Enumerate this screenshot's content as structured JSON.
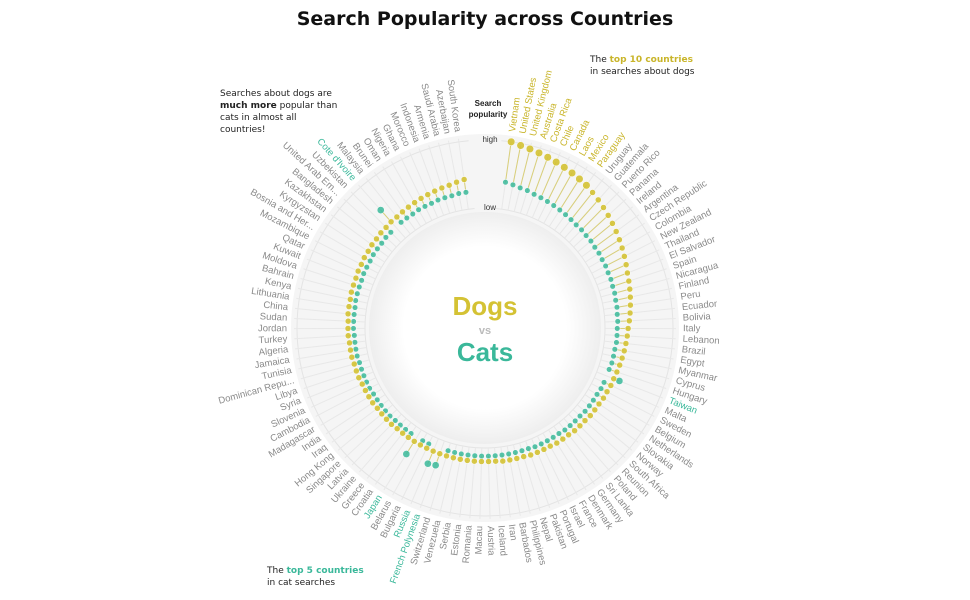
{
  "chart_data": {
    "type": "radial-lollipop",
    "title": "Search Popularity across Countries",
    "axis_label": [
      "Search",
      "popularity"
    ],
    "vs_label": "vs",
    "rlim": [
      0,
      100
    ],
    "rticks": [
      {
        "value": 0,
        "label": "low"
      },
      {
        "value": 100,
        "label": "high"
      }
    ],
    "annotations": {
      "dogs_note": [
        "Searches about dogs are",
        "much more",
        " popular than",
        "cats in almost all countries!"
      ],
      "dog_top": [
        "The ",
        "top 10 countries",
        "in searches about dogs"
      ],
      "cat_top": [
        "The ",
        "top 5 countries",
        "in cat searches"
      ]
    },
    "categories": [
      "Vietnam",
      "United States",
      "United Kingdom",
      "Australia",
      "Costa Rica",
      "Chile",
      "Canada",
      "Laos",
      "Mexico",
      "Paraguay",
      "Uruguay",
      "Guatemala",
      "Puerto Rico",
      "Panama",
      "Ireland",
      "Argentina",
      "Czech Republic",
      "Colombia",
      "New Zealand",
      "Thailand",
      "El Salvador",
      "Spain",
      "Nicaragua",
      "Finland",
      "Peru",
      "Ecuador",
      "Bolivia",
      "Italy",
      "Lebanon",
      "Brazil",
      "Egypt",
      "Myanmar",
      "Cyprus",
      "Hungary",
      "Taiwan",
      "Malta",
      "Sweden",
      "Belgium",
      "Netherlands",
      "Slovakia",
      "Norway",
      "South Africa",
      "Reunion",
      "Poland",
      "Sri Lanka",
      "Germany",
      "Denmark",
      "France",
      "Israel",
      "Portugal",
      "Pakistan",
      "Nepal",
      "Philippines",
      "Barbados",
      "Iran",
      "Iceland",
      "Austria",
      "Macau",
      "Romania",
      "Estonia",
      "Serbia",
      "Venezuela",
      "Switzerland",
      "French Polynesia",
      "Russia",
      "Bulgaria",
      "Belarus",
      "Japan",
      "Croatia",
      "Greece",
      "Ukraine",
      "Latvia",
      "Singapore",
      "Hong Kong",
      "Iraq",
      "India",
      "Madagascar",
      "Cambodia",
      "Slovenia",
      "Syria",
      "Libya",
      "Dominican Repu...",
      "Tunisia",
      "Jamaica",
      "Algeria",
      "Turkey",
      "Jordan",
      "Sudan",
      "China",
      "Lithuania",
      "Kenya",
      "Bahrain",
      "Moldova",
      "Kuwait",
      "Qatar",
      "Mozambique",
      "Bosnia and Her...",
      "Kyrgyzstan",
      "Kazakhstan",
      "Bangladesh",
      "United Arab Em...",
      "Uzbekistan",
      "Cote d'Ivoire",
      "Malaysia",
      "Brunei",
      "Oman",
      "Nigeria",
      "Ghana",
      "Morocco",
      "Indonesia",
      "Armenia",
      "Saudi Arabia",
      "Azerbaijan",
      "South Korea"
    ],
    "series": [
      {
        "name": "Dogs",
        "color": "#d4c234",
        "highlight": [
          0,
          1,
          2,
          3,
          4,
          5,
          6,
          7,
          8,
          9
        ],
        "values": [
          100,
          97,
          95,
          93,
          91,
          89,
          87,
          85,
          83,
          81,
          78,
          75,
          72,
          69,
          66,
          63,
          60,
          57,
          54,
          51,
          48,
          46,
          44,
          42,
          40,
          38,
          36,
          34,
          33,
          32,
          31,
          30,
          29,
          28,
          27,
          27,
          26,
          26,
          25,
          25,
          25,
          24,
          24,
          24,
          23,
          23,
          23,
          22,
          22,
          22,
          22,
          21,
          21,
          21,
          21,
          20,
          20,
          20,
          20,
          20,
          20,
          20,
          20,
          20,
          20,
          20,
          20,
          20,
          20,
          20,
          20,
          21,
          21,
          21,
          21,
          22,
          22,
          22,
          22,
          23,
          23,
          23,
          24,
          24,
          24,
          25,
          25,
          25,
          26,
          26,
          26,
          27,
          27,
          27,
          28,
          28,
          29,
          29,
          30,
          30,
          31,
          31,
          32,
          32,
          33,
          34,
          35,
          36,
          37,
          38,
          39,
          40,
          42,
          44
        ]
      },
      {
        "name": "Cats",
        "color": "#3ab89a",
        "highlight": [
          34,
          63,
          64,
          67,
          102
        ],
        "values": [
          40,
          38,
          36,
          35,
          33,
          32,
          31,
          30,
          29,
          28,
          27,
          26,
          26,
          25,
          25,
          24,
          24,
          23,
          23,
          22,
          22,
          21,
          21,
          20,
          20,
          19,
          19,
          18,
          18,
          18,
          17,
          17,
          17,
          16,
          36,
          16,
          16,
          15,
          15,
          15,
          15,
          14,
          14,
          14,
          14,
          13,
          13,
          13,
          13,
          13,
          12,
          12,
          12,
          12,
          12,
          12,
          12,
          12,
          12,
          12,
          12,
          12,
          12,
          38,
          40,
          13,
          13,
          42,
          13,
          13,
          13,
          13,
          14,
          14,
          14,
          14,
          14,
          15,
          15,
          15,
          15,
          15,
          16,
          16,
          16,
          16,
          17,
          17,
          17,
          17,
          18,
          18,
          18,
          18,
          19,
          19,
          19,
          20,
          20,
          20,
          21,
          21,
          55,
          22,
          22,
          22,
          23,
          23,
          23,
          24,
          24,
          24,
          25,
          25
        ]
      }
    ]
  }
}
